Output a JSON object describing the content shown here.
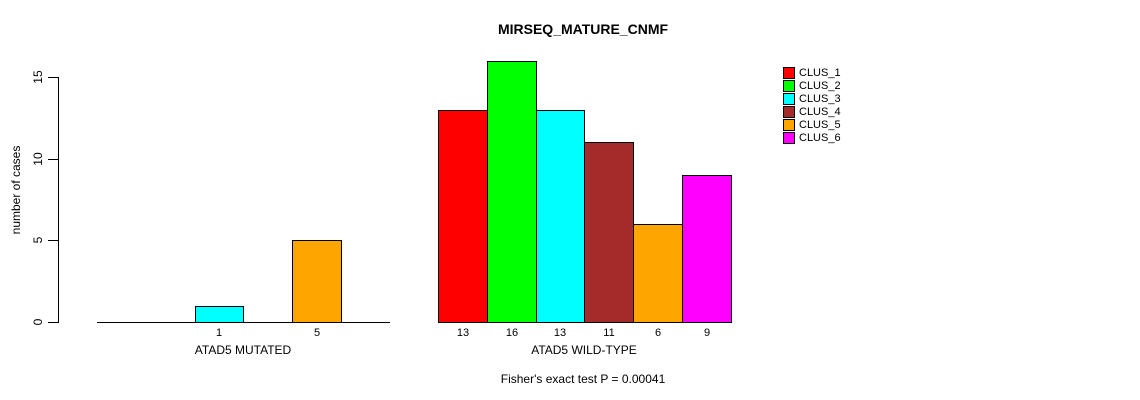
{
  "chart_data": {
    "type": "bar",
    "title": "MIRSEQ_MATURE_CNMF",
    "ylabel": "number of cases",
    "xlabel": "",
    "yticks": [
      0,
      5,
      10,
      15
    ],
    "ylim": [
      0,
      16
    ],
    "grid": false,
    "legend_position": "top-right",
    "clusters": [
      "CLUS_1",
      "CLUS_2",
      "CLUS_3",
      "CLUS_4",
      "CLUS_5",
      "CLUS_6"
    ],
    "colors": [
      "#ff0000",
      "#00ff00",
      "#00ffff",
      "#a52a2a",
      "#ffa500",
      "#ff00ff"
    ],
    "groups": [
      {
        "label": "ATAD5 MUTATED",
        "values": [
          0,
          0,
          1,
          0,
          5,
          0
        ],
        "shown_bar_labels": [
          "1",
          "5"
        ]
      },
      {
        "label": "ATAD5 WILD-TYPE",
        "values": [
          13,
          16,
          13,
          11,
          6,
          9
        ],
        "shown_bar_labels": [
          "13",
          "16",
          "13",
          "11",
          "6",
          "9"
        ]
      }
    ],
    "footnote": "Fisher's exact test P = 0.00041",
    "axis_color": "#000000",
    "background_color": "#ffffff"
  }
}
